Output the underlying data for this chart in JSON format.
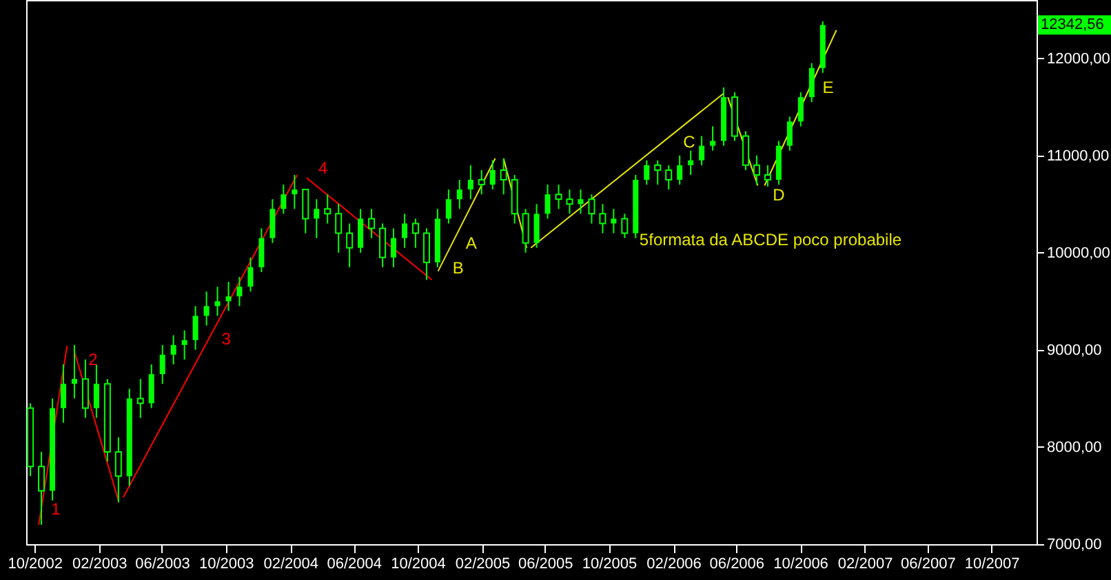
{
  "chart_data": {
    "type": "candlestick",
    "x": [
      "2002-09-23",
      "2002-10-14",
      "2002-11-04",
      "2002-11-25",
      "2002-12-16",
      "2003-01-06",
      "2003-01-27",
      "2003-02-17",
      "2003-03-10",
      "2003-03-31",
      "2003-04-21",
      "2003-05-12",
      "2003-06-02",
      "2003-06-23",
      "2003-07-14",
      "2003-08-04",
      "2003-08-25",
      "2003-09-15",
      "2003-10-06",
      "2003-10-27",
      "2003-11-17",
      "2003-12-08",
      "2003-12-29",
      "2004-01-19",
      "2004-02-09",
      "2004-03-01",
      "2004-03-22",
      "2004-04-12",
      "2004-05-03",
      "2004-05-24",
      "2004-06-14",
      "2004-07-05",
      "2004-07-26",
      "2004-08-16",
      "2004-09-06",
      "2004-09-27",
      "2004-10-18",
      "2004-11-08",
      "2004-11-29",
      "2004-12-20",
      "2005-01-10",
      "2005-01-31",
      "2005-02-21",
      "2005-03-14",
      "2005-04-04",
      "2005-04-25",
      "2005-05-16",
      "2005-06-06",
      "2005-06-27",
      "2005-07-18",
      "2005-08-08",
      "2005-08-29",
      "2005-09-19",
      "2005-10-10",
      "2005-10-31",
      "2005-11-21",
      "2005-12-12",
      "2006-01-02",
      "2006-01-23",
      "2006-02-13",
      "2006-03-06",
      "2006-03-27",
      "2006-04-17",
      "2006-05-08",
      "2006-05-29",
      "2006-06-19",
      "2006-07-10",
      "2006-07-31",
      "2006-08-21",
      "2006-09-11",
      "2006-10-02",
      "2006-10-23",
      "2006-11-13"
    ],
    "ohlc": [
      [
        8400,
        8450,
        7700,
        7800
      ],
      [
        7800,
        7950,
        7200,
        7550
      ],
      [
        7550,
        8500,
        7450,
        8400
      ],
      [
        8400,
        8850,
        8250,
        8650
      ],
      [
        8650,
        9050,
        8500,
        8700
      ],
      [
        8700,
        8900,
        8300,
        8400
      ],
      [
        8400,
        8850,
        8300,
        8650
      ],
      [
        8650,
        8700,
        7850,
        7950
      ],
      [
        7950,
        8100,
        7430,
        7700
      ],
      [
        7700,
        8600,
        7600,
        8500
      ],
      [
        8500,
        8700,
        8300,
        8450
      ],
      [
        8450,
        8850,
        8400,
        8750
      ],
      [
        8750,
        9050,
        8650,
        8950
      ],
      [
        8950,
        9150,
        8850,
        9050
      ],
      [
        9050,
        9200,
        8900,
        9100
      ],
      [
        9100,
        9450,
        9000,
        9350
      ],
      [
        9350,
        9600,
        9250,
        9450
      ],
      [
        9450,
        9650,
        9350,
        9500
      ],
      [
        9500,
        9700,
        9400,
        9550
      ],
      [
        9550,
        9750,
        9450,
        9650
      ],
      [
        9650,
        9950,
        9600,
        9850
      ],
      [
        9850,
        10250,
        9800,
        10150
      ],
      [
        10150,
        10550,
        10100,
        10450
      ],
      [
        10450,
        10700,
        10400,
        10600
      ],
      [
        10600,
        10800,
        10450,
        10650
      ],
      [
        10650,
        10650,
        10200,
        10350
      ],
      [
        10350,
        10550,
        10150,
        10450
      ],
      [
        10450,
        10600,
        10300,
        10400
      ],
      [
        10400,
        10500,
        10000,
        10200
      ],
      [
        10200,
        10300,
        9850,
        10050
      ],
      [
        10050,
        10450,
        10000,
        10350
      ],
      [
        10350,
        10450,
        10150,
        10250
      ],
      [
        10250,
        10300,
        9850,
        9950
      ],
      [
        9950,
        10250,
        9850,
        10150
      ],
      [
        10150,
        10400,
        10050,
        10300
      ],
      [
        10300,
        10350,
        10050,
        10200
      ],
      [
        10200,
        10250,
        9720,
        9900
      ],
      [
        9900,
        10450,
        9850,
        10350
      ],
      [
        10350,
        10650,
        10300,
        10550
      ],
      [
        10550,
        10750,
        10450,
        10650
      ],
      [
        10650,
        10900,
        10550,
        10750
      ],
      [
        10750,
        10850,
        10600,
        10700
      ],
      [
        10700,
        10950,
        10650,
        10850
      ],
      [
        10850,
        10970,
        10600,
        10750
      ],
      [
        10750,
        10800,
        10300,
        10400
      ],
      [
        10400,
        10450,
        10000,
        10100
      ],
      [
        10100,
        10500,
        10050,
        10400
      ],
      [
        10400,
        10700,
        10350,
        10600
      ],
      [
        10600,
        10700,
        10450,
        10550
      ],
      [
        10550,
        10650,
        10400,
        10500
      ],
      [
        10500,
        10650,
        10400,
        10550
      ],
      [
        10550,
        10600,
        10300,
        10400
      ],
      [
        10400,
        10500,
        10200,
        10300
      ],
      [
        10300,
        10450,
        10200,
        10350
      ],
      [
        10350,
        10400,
        10150,
        10200
      ],
      [
        10200,
        10800,
        10150,
        10750
      ],
      [
        10750,
        10950,
        10700,
        10900
      ],
      [
        10900,
        10950,
        10700,
        10850
      ],
      [
        10850,
        10900,
        10650,
        10750
      ],
      [
        10750,
        11000,
        10700,
        10900
      ],
      [
        10900,
        11050,
        10800,
        10950
      ],
      [
        10950,
        11200,
        10900,
        11100
      ],
      [
        11100,
        11300,
        11050,
        11150
      ],
      [
        11150,
        11700,
        11100,
        11600
      ],
      [
        11600,
        11650,
        11150,
        11200
      ],
      [
        11200,
        11250,
        10850,
        10900
      ],
      [
        10900,
        11000,
        10700,
        10800
      ],
      [
        10800,
        10900,
        10680,
        10750
      ],
      [
        10750,
        11150,
        10700,
        11100
      ],
      [
        11100,
        11400,
        11050,
        11350
      ],
      [
        11350,
        11650,
        11300,
        11600
      ],
      [
        11600,
        11950,
        11550,
        11900
      ],
      [
        11900,
        12380,
        11850,
        12342.56
      ]
    ],
    "color": "#00ff00",
    "series": [
      {
        "type": "line",
        "color": "#ff0000",
        "x": [
          "2002-10-09",
          "2002-12-02"
        ],
        "values": [
          7200,
          9040
        ]
      },
      {
        "type": "line",
        "color": "#ff0000",
        "x": [
          "2002-12-15",
          "2003-03-11"
        ],
        "values": [
          9000,
          7430
        ]
      },
      {
        "type": "line",
        "color": "#ff0000",
        "x": [
          "2003-03-19",
          "2004-02-14"
        ],
        "values": [
          7480,
          10800
        ]
      },
      {
        "type": "line",
        "color": "#ff0000",
        "x": [
          "2004-03-03",
          "2004-10-28"
        ],
        "values": [
          10770,
          9720
        ]
      },
      {
        "type": "line",
        "color": "#e6e600",
        "x": [
          "2004-11-09",
          "2005-02-26"
        ],
        "values": [
          9810,
          10970
        ]
      },
      {
        "type": "line",
        "color": "#e6e600",
        "x": [
          "2005-03-14",
          "2005-04-27"
        ],
        "values": [
          10970,
          10050
        ]
      },
      {
        "type": "line",
        "color": "#e6e600",
        "x": [
          "2005-05-05",
          "2006-05-08"
        ],
        "values": [
          10050,
          11640
        ]
      },
      {
        "type": "line",
        "color": "#e6e600",
        "x": [
          "2006-05-16",
          "2006-07-12"
        ],
        "values": [
          11600,
          10690
        ]
      },
      {
        "type": "line",
        "color": "#e6e600",
        "x": [
          "2006-07-25",
          "2006-12-09"
        ],
        "values": [
          10690,
          12290
        ]
      }
    ],
    "annotations": [
      {
        "text": "1",
        "x": "2002-10-17",
        "y": 7460
      },
      {
        "text": "2",
        "x": "2002-12-27",
        "y": 8770
      },
      {
        "text": "3",
        "x": "2003-09-07",
        "y": 9210
      },
      {
        "text": "4",
        "x": "2004-03-10",
        "y": 10740
      },
      {
        "text": "A",
        "x": "2004-12-16",
        "y": 10200
      },
      {
        "text": "B",
        "x": "2004-11-21",
        "y": 9940
      },
      {
        "text": "C",
        "x": "2006-02-04",
        "y": 11240
      },
      {
        "text": "D",
        "x": "2006-07-25",
        "y": 10690
      },
      {
        "text": "E",
        "x": "2006-10-28",
        "y": 11800
      },
      "5formata da ABCDE poco probabile",
      "12342,56"
    ],
    "xlim": [
      "2002-09-15",
      "2007-12-26"
    ],
    "xticks": [
      {
        "value": "2002-10-01",
        "label": "10/2002"
      },
      {
        "value": "2003-02-01",
        "label": "02/2003"
      },
      {
        "value": "2003-06-01",
        "label": "06/2003"
      },
      {
        "value": "2003-10-01",
        "label": "10/2003"
      },
      {
        "value": "2004-02-01",
        "label": "02/2004"
      },
      {
        "value": "2004-06-01",
        "label": "06/2004"
      },
      {
        "value": "2004-10-01",
        "label": "10/2004"
      },
      {
        "value": "2005-02-01",
        "label": "02/2005"
      },
      {
        "value": "2005-06-01",
        "label": "06/2005"
      },
      {
        "value": "2005-10-01",
        "label": "10/2005"
      },
      {
        "value": "2006-02-01",
        "label": "02/2006"
      },
      {
        "value": "2006-06-01",
        "label": "06/2006"
      },
      {
        "value": "2006-10-01",
        "label": "10/2006"
      },
      {
        "value": "2007-02-01",
        "label": "02/2007"
      },
      {
        "value": "2007-06-01",
        "label": "06/2007"
      },
      {
        "value": "2007-10-01",
        "label": "10/2007"
      }
    ],
    "ylim": [
      7000,
      12600
    ],
    "yticks": [
      {
        "value": 7000,
        "label": "7000,00"
      },
      {
        "value": 8000,
        "label": "8000,00"
      },
      {
        "value": 9000,
        "label": "9000,00"
      },
      {
        "value": 10000,
        "label": "10000,00"
      },
      {
        "value": 11000,
        "label": "11000,00"
      },
      {
        "value": 12000,
        "label": "12000,00"
      }
    ],
    "grid": false
  }
}
